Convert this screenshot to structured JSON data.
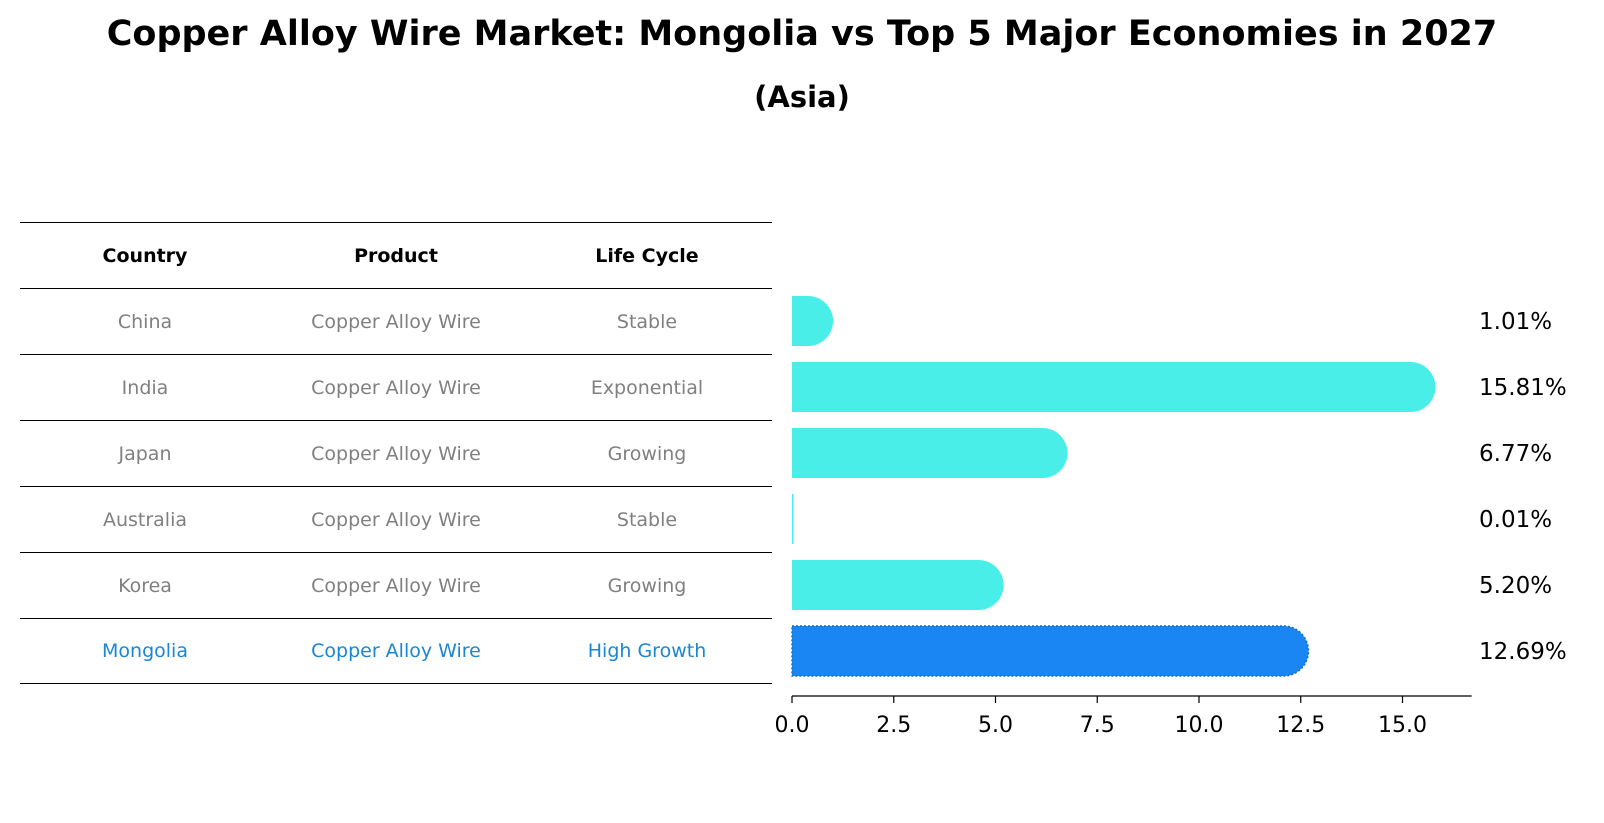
{
  "title": "Copper Alloy Wire Market: Mongolia vs Top 5 Major Economies in 2027",
  "subtitle": "(Asia)",
  "table": {
    "headers": [
      "Country",
      "Product",
      "Life Cycle"
    ],
    "rows": [
      [
        "China",
        "Copper Alloy Wire",
        "Stable"
      ],
      [
        "India",
        "Copper Alloy Wire",
        "Exponential"
      ],
      [
        "Japan",
        "Copper Alloy Wire",
        "Growing"
      ],
      [
        "Australia",
        "Copper Alloy Wire",
        "Stable"
      ],
      [
        "Korea",
        "Copper Alloy Wire",
        "Growing"
      ],
      [
        "Mongolia",
        "Copper Alloy Wire",
        "High Growth"
      ]
    ]
  },
  "colors": {
    "bar": "#4aeee8",
    "highlight_bar": "#1a86f4",
    "highlight_text": "#1a86d6",
    "muted_text": "#808080"
  },
  "chart_data": {
    "type": "bar",
    "orientation": "horizontal",
    "categories": [
      "China",
      "India",
      "Japan",
      "Australia",
      "Korea",
      "Mongolia"
    ],
    "values": [
      1.01,
      15.81,
      6.77,
      0.01,
      5.2,
      12.69
    ],
    "value_labels": [
      "1.01%",
      "15.81%",
      "6.77%",
      "0.01%",
      "5.20%",
      "12.69%"
    ],
    "highlight": "Mongolia",
    "xlim": [
      0,
      16.6
    ],
    "xticks": [
      0.0,
      2.5,
      5.0,
      7.5,
      10.0,
      12.5,
      15.0
    ],
    "xtick_labels": [
      "0.0",
      "2.5",
      "5.0",
      "7.5",
      "10.0",
      "12.5",
      "15.0"
    ],
    "grid": false
  }
}
